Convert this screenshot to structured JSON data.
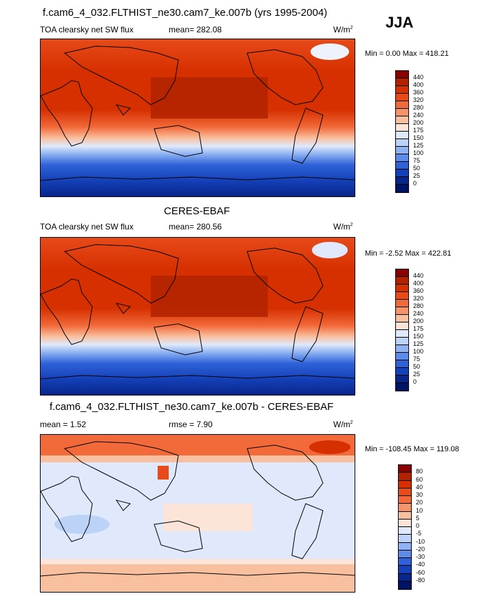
{
  "season": "JJA",
  "panels": [
    {
      "title": "f.cam6_4_032.FLTHIST_ne30.cam7_ke.007b (yrs 1995-2004)",
      "left_label": "TOA clearsky net SW flux",
      "mean_label": "mean= 282.08",
      "rmse_label": "",
      "units": "W/m",
      "units_sup": "2",
      "minmax": "Min =   0.00 Max = 418.21",
      "type": "abs"
    },
    {
      "title": "CERES-EBAF",
      "left_label": "TOA clearsky net SW flux",
      "mean_label": "mean= 280.56",
      "rmse_label": "",
      "units": "W/m",
      "units_sup": "2",
      "minmax": "Min =  -2.52 Max = 422.81",
      "type": "abs"
    },
    {
      "title": "f.cam6_4_032.FLTHIST_ne30.cam7_ke.007b - CERES-EBAF",
      "left_label": "mean =   1.52",
      "mean_label": "",
      "rmse_label": "rmse =   7.90",
      "units": "W/m",
      "units_sup": "2",
      "minmax": "Min = -108.45 Max = 119.08",
      "type": "diff"
    }
  ],
  "colorbar_abs": {
    "labels": [
      "440",
      "400",
      "360",
      "320",
      "280",
      "240",
      "200",
      "175",
      "150",
      "125",
      "100",
      "75",
      "50",
      "25",
      "0"
    ],
    "colors": [
      "#8b0000",
      "#b22200",
      "#d63000",
      "#e84a1a",
      "#f26a3a",
      "#f5946a",
      "#f9c0a0",
      "#fce4d8",
      "#dfe9fb",
      "#bcd2f7",
      "#8fb3f2",
      "#5c8ce8",
      "#2f62d8",
      "#1440b8",
      "#08268c",
      "#001466"
    ]
  },
  "colorbar_diff": {
    "labels": [
      "80",
      "60",
      "40",
      "30",
      "20",
      "10",
      "5",
      "0",
      "-5",
      "-10",
      "-20",
      "-30",
      "-40",
      "-60",
      "-80"
    ],
    "colors": [
      "#8b0000",
      "#b22200",
      "#d63000",
      "#e84a1a",
      "#f26a3a",
      "#f5946a",
      "#f9c0a0",
      "#fce4d8",
      "#dfe9fb",
      "#bcd2f7",
      "#8fb3f2",
      "#5c8ce8",
      "#2f62d8",
      "#1440b8",
      "#08268c",
      "#001466"
    ]
  }
}
